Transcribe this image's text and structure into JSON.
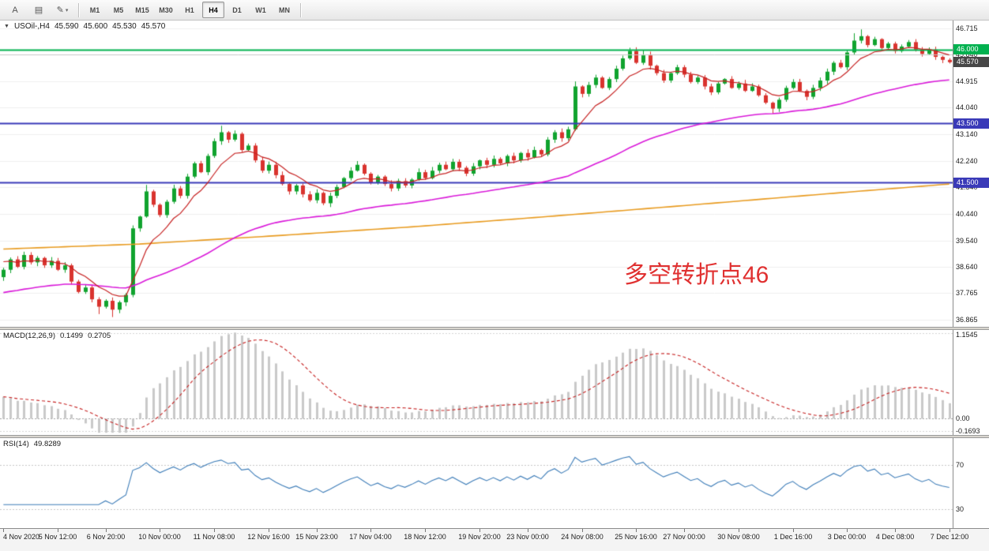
{
  "toolbar": {
    "buttons": [
      {
        "id": "text-tool",
        "label": "A"
      },
      {
        "id": "template",
        "icon": "▤"
      },
      {
        "id": "objects",
        "icon": "✎",
        "caret": "▾"
      }
    ],
    "timeframes": [
      {
        "label": "M1",
        "active": false
      },
      {
        "label": "M5",
        "active": false
      },
      {
        "label": "M15",
        "active": false
      },
      {
        "label": "M30",
        "active": false
      },
      {
        "label": "H1",
        "active": false
      },
      {
        "label": "H4",
        "active": true
      },
      {
        "label": "D1",
        "active": false
      },
      {
        "label": "W1",
        "active": false
      },
      {
        "label": "MN",
        "active": false
      }
    ]
  },
  "main_chart": {
    "legend": {
      "symbol": "USOil-,H4",
      "open": "45.590",
      "high": "45.600",
      "low": "45.530",
      "close": "45.570"
    },
    "annotation": {
      "text": "多空转折点46",
      "color": "#e03131"
    },
    "axis_labels": [
      "46.715",
      "45.840",
      "44.915",
      "44.040",
      "43.140",
      "42.240",
      "41.340",
      "40.440",
      "39.540",
      "38.640",
      "37.765",
      "36.865"
    ],
    "price_tags": [
      {
        "text": "46.000",
        "bg": "#00B14F",
        "value": 46.0
      },
      {
        "text": "45.570",
        "bg": "#474747",
        "value": 45.57
      },
      {
        "text": "43.500",
        "bg": "#3A3AB8",
        "value": 43.5
      },
      {
        "text": "41.500",
        "bg": "#3A3AB8",
        "value": 41.5
      }
    ],
    "levels": [
      {
        "value": 46.0,
        "color": "#00B14F",
        "width": 2
      },
      {
        "value": 45.84,
        "color": "#c9c9c9",
        "width": 1
      },
      {
        "value": 43.5,
        "color": "#3A3AB8",
        "width": 2
      },
      {
        "value": 41.5,
        "color": "#3A3AB8",
        "width": 2
      }
    ]
  },
  "macd_panel": {
    "name": "MACD(12,26,9)",
    "main_value": "0.1499",
    "signal_value": "0.2705",
    "axis_labels": [
      "1.1545",
      "0.00",
      "-0.1693"
    ],
    "axis_values": [
      1.1545,
      0,
      -0.1693
    ]
  },
  "rsi_panel": {
    "name": "RSI(14)",
    "value": "49.8289",
    "axis_labels": [
      "70",
      "30"
    ],
    "axis_values": [
      70,
      30
    ]
  },
  "time_axis": {
    "labels": [
      "4 Nov 2020",
      "5 Nov 12:00",
      "6 Nov 20:00",
      "10 Nov 00:00",
      "11 Nov 08:00",
      "12 Nov 16:00",
      "15 Nov 23:00",
      "17 Nov 04:00",
      "18 Nov 12:00",
      "19 Nov 20:00",
      "23 Nov 00:00",
      "24 Nov 08:00",
      "25 Nov 16:00",
      "27 Nov 00:00",
      "30 Nov 08:00",
      "1 Dec 16:00",
      "3 Dec 00:00",
      "4 Dec 08:00",
      "7 Dec 12:00"
    ]
  },
  "chart_data": {
    "type": "candlestick",
    "symbol": "USOil-",
    "timeframe": "H4",
    "current_ohlc": {
      "open": 45.59,
      "high": 45.6,
      "low": 45.53,
      "close": 45.57
    },
    "range": {
      "price_min": 36.62,
      "price_max": 46.98
    },
    "price_ticks": [
      46.715,
      45.84,
      44.915,
      44.04,
      43.14,
      42.24,
      41.34,
      40.44,
      39.54,
      38.64,
      37.765,
      36.865
    ],
    "horizontal_levels": [
      46.0,
      43.5,
      41.5
    ],
    "annotation": "多空转折点46",
    "first_open": 38.3,
    "closes": [
      38.55,
      38.9,
      38.65,
      39.05,
      38.8,
      38.95,
      38.7,
      38.85,
      38.55,
      38.7,
      38.15,
      37.8,
      37.95,
      37.55,
      37.3,
      37.5,
      37.2,
      37.45,
      37.7,
      39.95,
      40.35,
      41.2,
      40.75,
      40.4,
      40.85,
      41.3,
      41.05,
      41.7,
      42.15,
      41.85,
      42.4,
      42.9,
      43.2,
      42.95,
      43.15,
      42.6,
      42.75,
      42.25,
      41.9,
      42.1,
      41.75,
      41.45,
      41.2,
      41.4,
      41.1,
      40.9,
      41.15,
      40.8,
      41.05,
      41.35,
      41.65,
      41.9,
      42.1,
      41.8,
      41.5,
      41.7,
      41.45,
      41.3,
      41.55,
      41.4,
      41.6,
      41.85,
      41.65,
      41.9,
      42.1,
      41.95,
      42.2,
      42.0,
      41.8,
      42.05,
      42.25,
      42.1,
      42.3,
      42.15,
      42.4,
      42.25,
      42.5,
      42.35,
      42.6,
      42.45,
      42.95,
      43.2,
      43.0,
      43.3,
      44.75,
      44.5,
      44.8,
      45.05,
      44.7,
      45.0,
      45.35,
      45.7,
      45.95,
      45.55,
      45.8,
      45.45,
      45.2,
      44.95,
      45.2,
      45.4,
      45.15,
      44.9,
      45.05,
      44.75,
      44.55,
      44.85,
      45.0,
      44.7,
      44.85,
      44.6,
      44.75,
      44.45,
      44.2,
      44.0,
      44.3,
      44.7,
      44.9,
      44.6,
      44.4,
      44.7,
      44.95,
      45.25,
      45.55,
      45.4,
      45.9,
      46.3,
      46.45,
      46.15,
      46.35,
      46.05,
      46.2,
      45.95,
      46.1,
      46.25,
      46.0,
      45.85,
      46.0,
      45.75,
      45.65,
      45.57
    ],
    "wick_overrides": {
      "14": {
        "l": 37.05
      },
      "16": {
        "l": 36.95
      },
      "19": {
        "h": 40.05,
        "l": 37.62
      },
      "21": {
        "h": 41.42
      },
      "32": {
        "h": 43.42
      },
      "84": {
        "h": 44.92,
        "l": 43.25
      },
      "92": {
        "h": 46.06
      },
      "94": {
        "h": 45.98
      },
      "113": {
        "l": 43.83
      },
      "125": {
        "h": 46.55
      },
      "126": {
        "h": 46.68
      }
    },
    "overlays": [
      {
        "name": "ma-fast",
        "type": "ema",
        "period": 8,
        "seed": 38.9,
        "color": "#c62222"
      },
      {
        "name": "ma-mid",
        "type": "ema",
        "period": 55,
        "seed": 37.75,
        "color": "#d919d9"
      },
      {
        "name": "ma-slow",
        "type": "anchors",
        "color": "#e89b20",
        "points": [
          [
            0,
            39.25
          ],
          [
            20,
            39.42
          ],
          [
            40,
            39.7
          ],
          [
            60,
            40.0
          ],
          [
            80,
            40.35
          ],
          [
            100,
            40.72
          ],
          [
            120,
            41.1
          ],
          [
            139,
            41.45
          ]
        ]
      }
    ],
    "indicators": [
      {
        "name": "MACD",
        "params": [
          12,
          26,
          9
        ],
        "range": [
          -0.22,
          1.2
        ],
        "last_main": 0.1499,
        "last_signal": 0.2705
      },
      {
        "name": "RSI",
        "params": [
          14
        ],
        "range": [
          13,
          94
        ],
        "levels": [
          70,
          30
        ],
        "last_value": 49.8289
      }
    ],
    "colors": {
      "up": "#10A32E",
      "down": "#D9332E",
      "macd_hist": "#c9c9c9",
      "macd_signal": "#c62222",
      "rsi": "#3e7db8"
    }
  }
}
